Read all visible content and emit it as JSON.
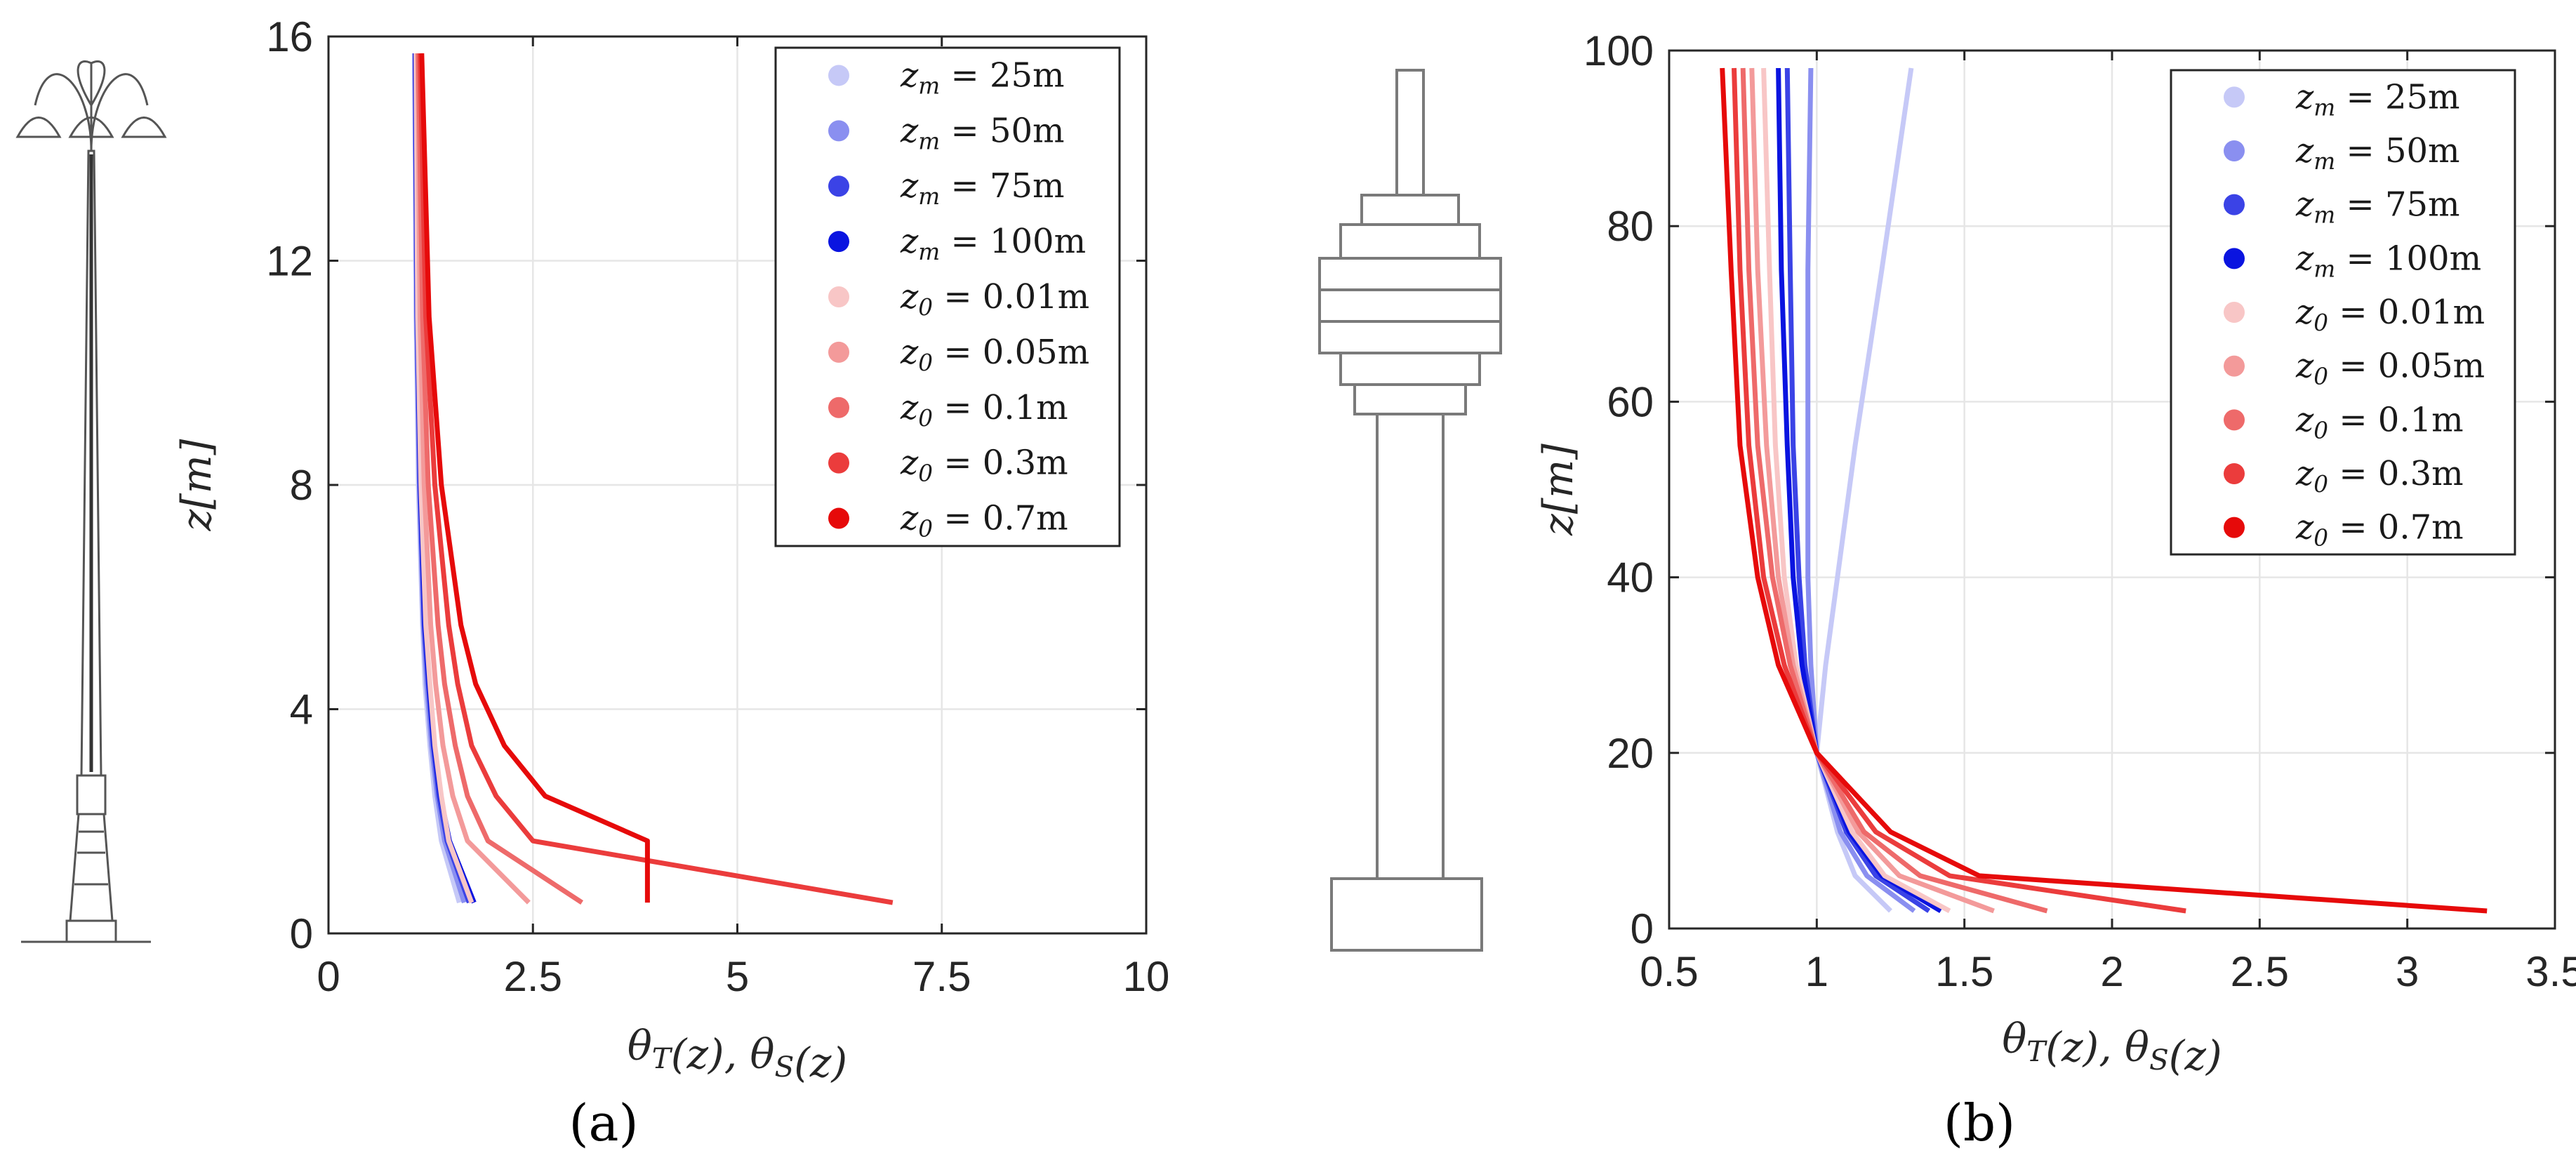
{
  "colors": {
    "blue": [
      "#c6c9f7",
      "#8a8ff0",
      "#3b43e6",
      "#0a14e0"
    ],
    "red": [
      "#f8c6c6",
      "#f39a9a",
      "#ee6a6a",
      "#eb3c3c",
      "#e60a0a"
    ],
    "grid": "#e6e6e6",
    "axis": "#262626"
  },
  "icons": {
    "left": "street-lamp-icon",
    "middle": "tower-outline-icon"
  },
  "chart_data": [
    {
      "type": "line",
      "caption": "(a)",
      "xlabel": "θ_T(z),  θ_S(z)",
      "ylabel": "z[m]",
      "xlim": [
        0,
        10
      ],
      "ylim": [
        0,
        16
      ],
      "xticks": [
        0,
        2.5,
        5,
        7.5,
        10
      ],
      "xticklabels": [
        "0",
        "2.5",
        "5",
        "7.5",
        "10"
      ],
      "yticks": [
        0,
        4,
        8,
        12,
        16
      ],
      "yticklabels": [
        "0",
        "4",
        "8",
        "12",
        "16"
      ],
      "grid": true,
      "legend_position": "top-right",
      "z": [
        0.55,
        1.65,
        2.45,
        3.35,
        4.45,
        5.5,
        8.0,
        11.0,
        15.7
      ],
      "series": [
        {
          "name": "z_m = 25m",
          "legend": [
            "z",
            "m",
            " = 25m"
          ],
          "color_index": 0,
          "group": "blue",
          "values": [
            1.6,
            1.38,
            1.3,
            1.24,
            1.18,
            1.15,
            1.1,
            1.07,
            1.05
          ]
        },
        {
          "name": "z_m = 50m",
          "legend": [
            "z",
            "m",
            " = 50m"
          ],
          "color_index": 1,
          "group": "blue",
          "values": [
            1.66,
            1.42,
            1.33,
            1.26,
            1.2,
            1.16,
            1.11,
            1.08,
            1.06
          ]
        },
        {
          "name": "z_m = 75m",
          "legend": [
            "z",
            "m",
            " = 75m"
          ],
          "color_index": 2,
          "group": "blue",
          "values": [
            1.72,
            1.45,
            1.35,
            1.28,
            1.22,
            1.17,
            1.12,
            1.08,
            1.06
          ]
        },
        {
          "name": "z_m = 100m",
          "legend": [
            "z",
            "m",
            " = 100m"
          ],
          "color_index": 3,
          "group": "blue",
          "values": [
            1.78,
            1.48,
            1.37,
            1.29,
            1.23,
            1.18,
            1.12,
            1.09,
            1.06
          ]
        },
        {
          "name": "z_0 = 0.01m",
          "legend": [
            "z",
            "0",
            " = 0.01m"
          ],
          "color_index": 0,
          "group": "red",
          "values": [
            1.75,
            1.47,
            1.38,
            1.3,
            1.24,
            1.19,
            1.13,
            1.09,
            1.07
          ]
        },
        {
          "name": "z_0 = 0.05m",
          "legend": [
            "z",
            "0",
            " = 0.05m"
          ],
          "color_index": 1,
          "group": "red",
          "values": [
            2.45,
            1.7,
            1.52,
            1.4,
            1.31,
            1.25,
            1.17,
            1.12,
            1.09
          ]
        },
        {
          "name": "z_0 = 0.1m",
          "legend": [
            "z",
            "0",
            " = 0.1m"
          ],
          "color_index": 2,
          "group": "red",
          "values": [
            3.1,
            1.95,
            1.7,
            1.55,
            1.42,
            1.34,
            1.22,
            1.15,
            1.1
          ]
        },
        {
          "name": "z_0 = 0.3m",
          "legend": [
            "z",
            "0",
            " = 0.3m"
          ],
          "color_index": 3,
          "group": "red",
          "values": [
            6.9,
            2.5,
            2.05,
            1.75,
            1.58,
            1.47,
            1.3,
            1.19,
            1.12
          ]
        },
        {
          "name": "z_0 = 0.7m",
          "legend": [
            "z",
            "0",
            " = 0.7m"
          ],
          "color_index": 4,
          "group": "red",
          "values": [
            3.9,
            3.9,
            2.65,
            2.15,
            1.8,
            1.62,
            1.38,
            1.23,
            1.14
          ]
        }
      ]
    },
    {
      "type": "line",
      "caption": "(b)",
      "xlabel": "θ_T(z),  θ_S(z)",
      "ylabel": "z[m]",
      "xlim": [
        0.5,
        3.5
      ],
      "ylim": [
        0,
        100
      ],
      "xticks": [
        0.5,
        1,
        1.5,
        2,
        2.5,
        3,
        3.5
      ],
      "xticklabels": [
        "0.5",
        "1",
        "1.5",
        "2",
        "2.5",
        "3",
        "3.5"
      ],
      "yticks": [
        0,
        20,
        40,
        60,
        80,
        100
      ],
      "yticklabels": [
        "0",
        "20",
        "40",
        "60",
        "80",
        "100"
      ],
      "grid": true,
      "legend_position": "top-right",
      "z": [
        2,
        6,
        11,
        20,
        30,
        40,
        55,
        75,
        98
      ],
      "series": [
        {
          "name": "z_m = 25m",
          "legend": [
            "z",
            "m",
            " = 25m"
          ],
          "color_index": 0,
          "group": "blue",
          "values": [
            1.25,
            1.13,
            1.07,
            1.0,
            1.03,
            1.07,
            1.13,
            1.22,
            1.32
          ]
        },
        {
          "name": "z_m = 50m",
          "legend": [
            "z",
            "m",
            " = 50m"
          ],
          "color_index": 1,
          "group": "blue",
          "values": [
            1.33,
            1.17,
            1.08,
            1.0,
            0.98,
            0.97,
            0.97,
            0.97,
            0.98
          ]
        },
        {
          "name": "z_m = 75m",
          "legend": [
            "z",
            "m",
            " = 75m"
          ],
          "color_index": 2,
          "group": "blue",
          "values": [
            1.38,
            1.2,
            1.1,
            1.0,
            0.96,
            0.94,
            0.92,
            0.91,
            0.9
          ]
        },
        {
          "name": "z_m = 100m",
          "legend": [
            "z",
            "m",
            " = 100m"
          ],
          "color_index": 3,
          "group": "blue",
          "values": [
            1.42,
            1.22,
            1.11,
            1.0,
            0.95,
            0.92,
            0.9,
            0.88,
            0.87
          ]
        },
        {
          "name": "z_0 = 0.01m",
          "legend": [
            "z",
            "0",
            " = 0.01m"
          ],
          "color_index": 0,
          "group": "red",
          "values": [
            1.45,
            1.23,
            1.12,
            1.0,
            0.93,
            0.89,
            0.86,
            0.84,
            0.82
          ]
        },
        {
          "name": "z_0 = 0.05m",
          "legend": [
            "z",
            "0",
            " = 0.05m"
          ],
          "color_index": 1,
          "group": "red",
          "values": [
            1.6,
            1.28,
            1.14,
            1.0,
            0.92,
            0.87,
            0.83,
            0.8,
            0.78
          ]
        },
        {
          "name": "z_0 = 0.1m",
          "legend": [
            "z",
            "0",
            " = 0.1m"
          ],
          "color_index": 2,
          "group": "red",
          "values": [
            1.78,
            1.35,
            1.16,
            1.0,
            0.91,
            0.85,
            0.8,
            0.77,
            0.75
          ]
        },
        {
          "name": "z_0 = 0.3m",
          "legend": [
            "z",
            "0",
            " = 0.3m"
          ],
          "color_index": 3,
          "group": "red",
          "values": [
            2.25,
            1.45,
            1.2,
            1.0,
            0.89,
            0.82,
            0.77,
            0.74,
            0.72
          ]
        },
        {
          "name": "z_0 = 0.7m",
          "legend": [
            "z",
            "0",
            " = 0.7m"
          ],
          "color_index": 4,
          "group": "red",
          "values": [
            3.27,
            1.55,
            1.25,
            1.0,
            0.87,
            0.8,
            0.74,
            0.71,
            0.68
          ]
        }
      ]
    }
  ]
}
